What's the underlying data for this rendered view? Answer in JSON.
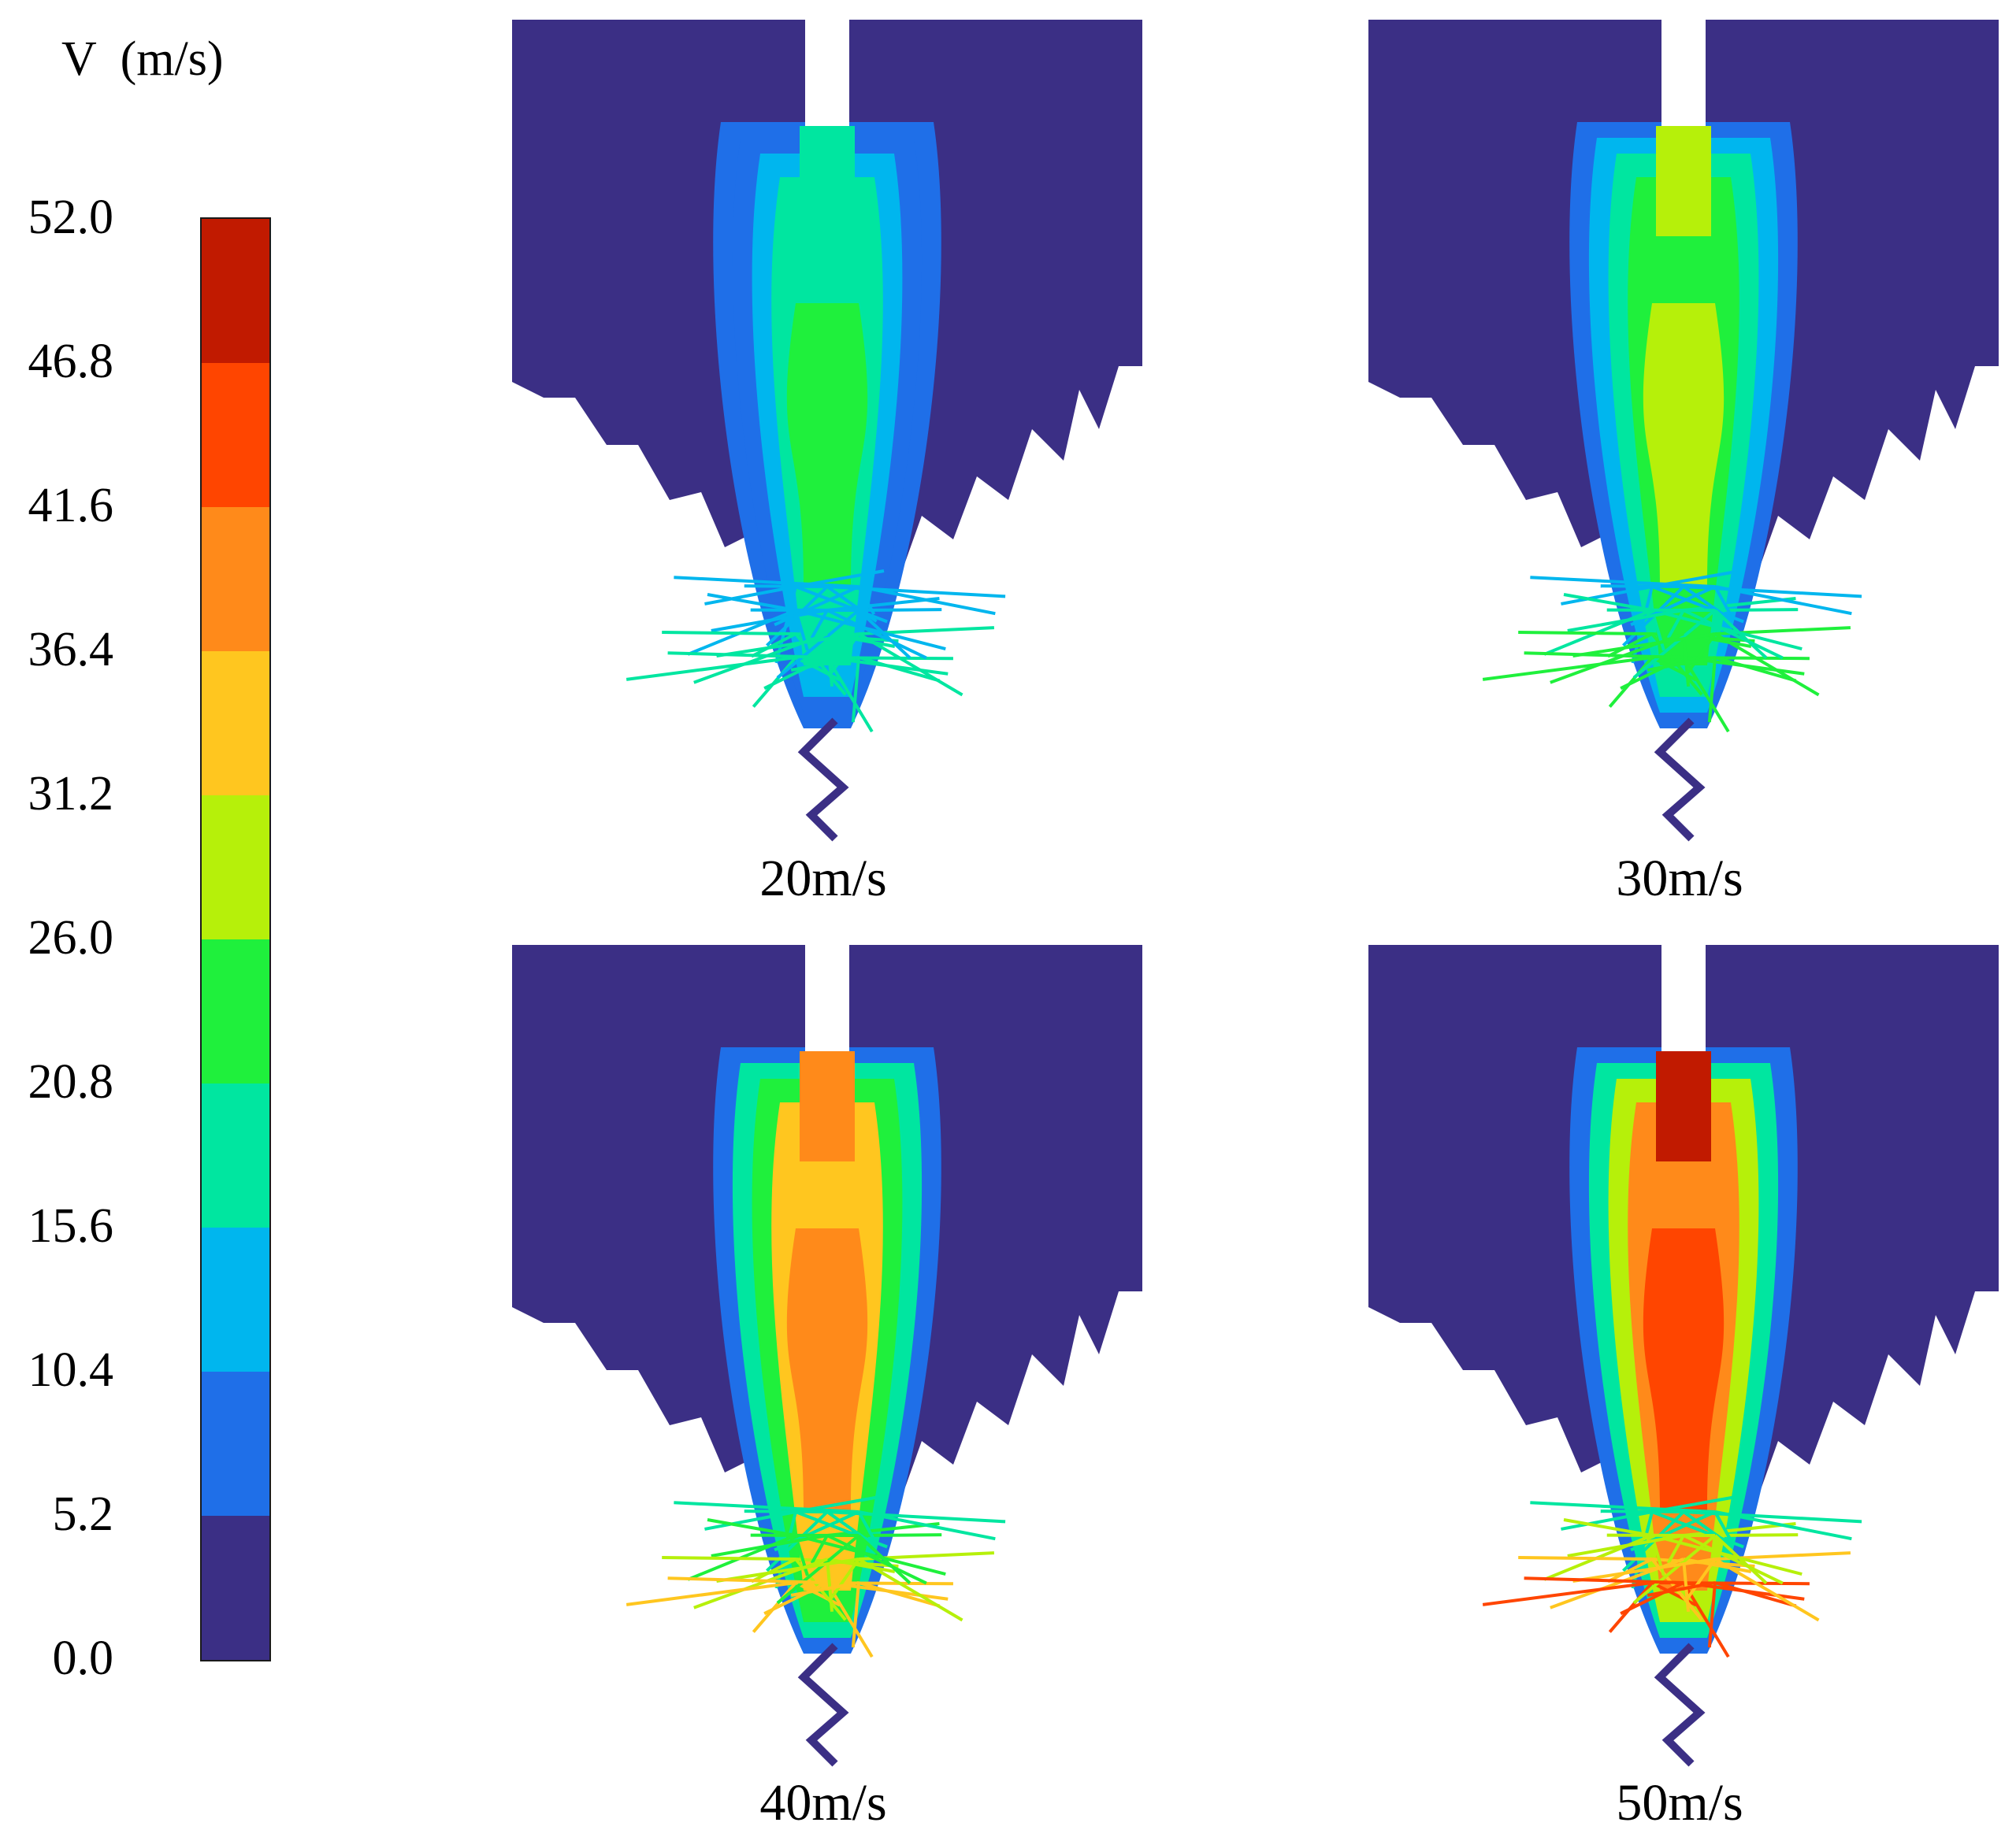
{
  "legend": {
    "title": "V  (m/s)",
    "ticks": [
      "52.0",
      "46.8",
      "41.6",
      "36.4",
      "31.2",
      "26.0",
      "20.8",
      "15.6",
      "10.4",
      "5.2",
      "0.0"
    ],
    "colors": [
      "#c11a00",
      "#ff4500",
      "#ff8a1a",
      "#ffc61f",
      "#b6f00a",
      "#1ff03c",
      "#00e6a0",
      "#00b6ee",
      "#1f6fe8",
      "#3b2f85"
    ]
  },
  "panels": [
    {
      "label": "20m/s",
      "level": 0.25
    },
    {
      "label": "30m/s",
      "level": 0.5
    },
    {
      "label": "40m/s",
      "level": 0.75
    },
    {
      "label": "50m/s",
      "level": 1.0
    }
  ]
}
